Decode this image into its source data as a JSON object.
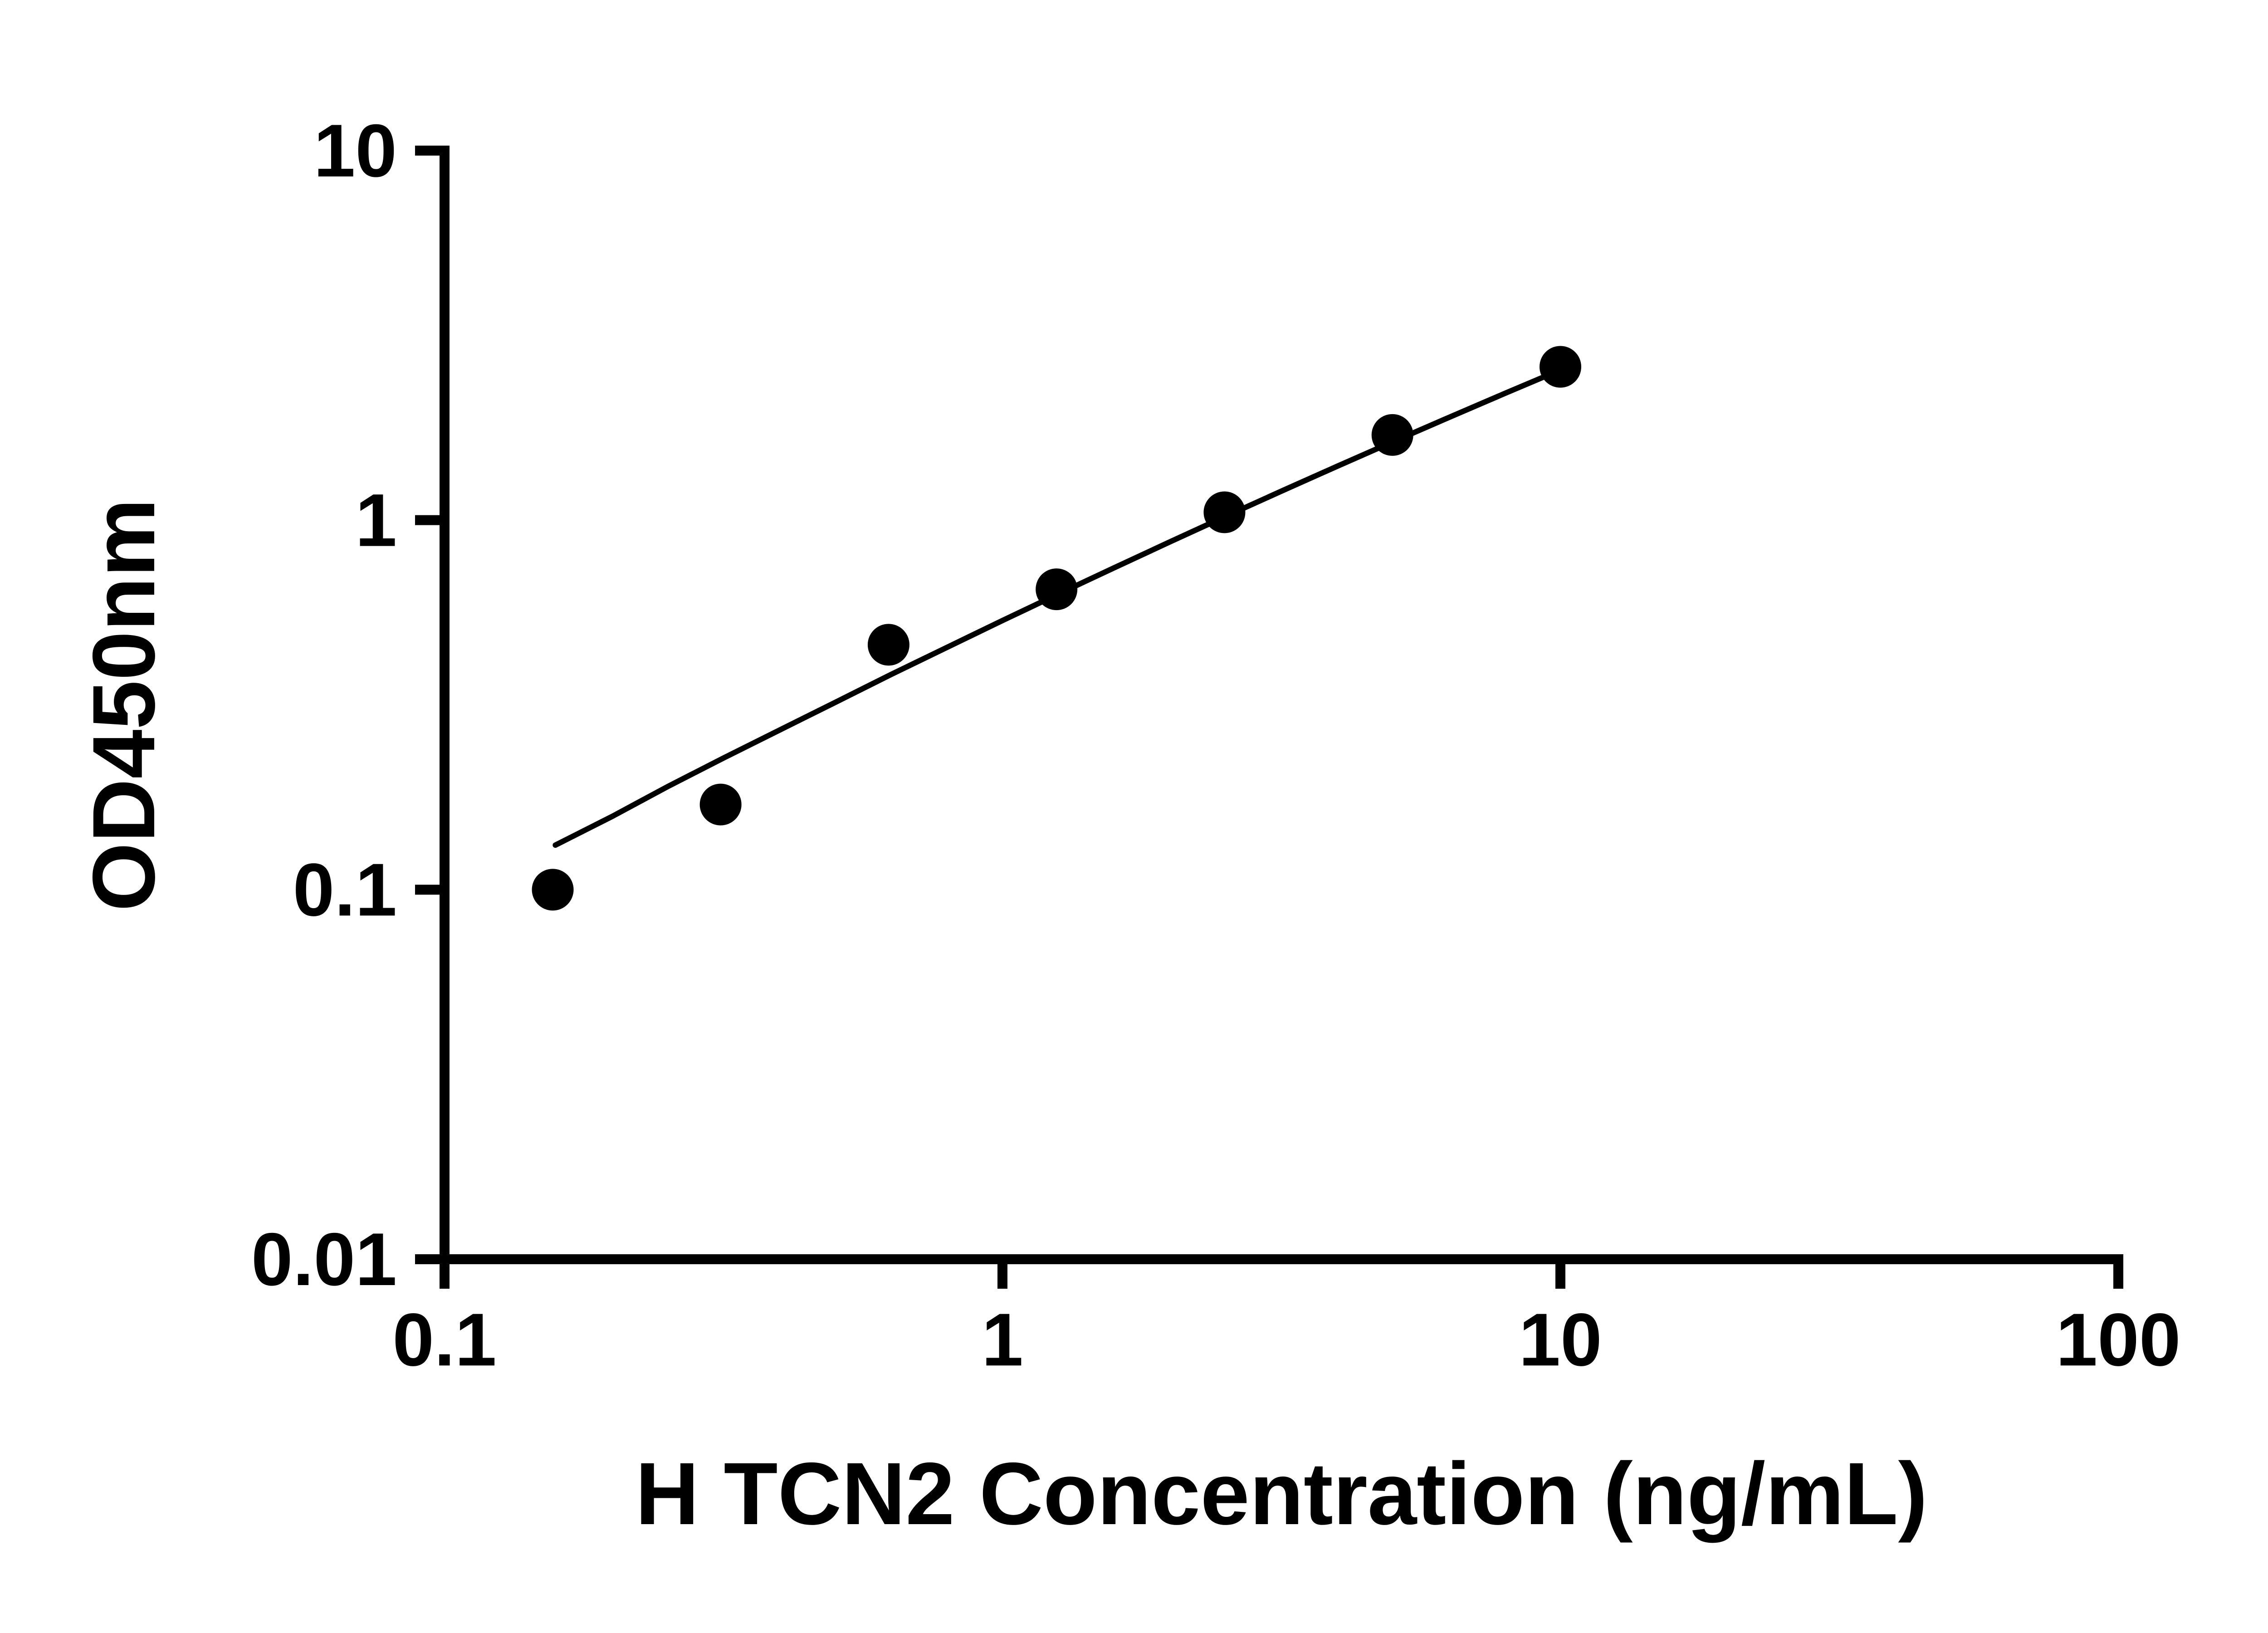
{
  "chart_data": {
    "type": "scatter",
    "title": "",
    "xlabel": "H TCN2 Concentration (ng/mL)",
    "ylabel": "OD450nm",
    "x_scale": "log",
    "y_scale": "log",
    "xlim": [
      0.1,
      100
    ],
    "ylim": [
      0.01,
      10
    ],
    "x_ticks": [
      0.1,
      1,
      10,
      100
    ],
    "x_tick_labels": [
      "0.1",
      "1",
      "10",
      "100"
    ],
    "y_ticks": [
      0.01,
      0.1,
      1,
      10
    ],
    "y_tick_labels": [
      "0.01",
      "0.1",
      "1",
      "10"
    ],
    "grid": false,
    "legend": "none",
    "colors": {
      "background": "#ffffff",
      "axis": "#000000",
      "point": "#000000",
      "line": "#000000"
    },
    "series": [
      {
        "name": "standard-points",
        "type": "scatter",
        "marker": "circle",
        "color": "#000000",
        "x": [
          0.1563,
          0.3125,
          0.625,
          1.25,
          2.5,
          5,
          10
        ],
        "y": [
          0.1,
          0.17,
          0.46,
          0.65,
          1.05,
          1.7,
          2.6
        ]
      },
      {
        "name": "fit-curve",
        "type": "line",
        "color": "#000000",
        "x": [
          0.158,
          0.2,
          0.251,
          0.316,
          0.398,
          0.501,
          0.631,
          0.794,
          1.0,
          1.259,
          1.585,
          1.995,
          2.512,
          3.162,
          3.981,
          5.012,
          6.31,
          7.943,
          10.0
        ],
        "y": [
          0.132,
          0.158,
          0.19,
          0.227,
          0.27,
          0.321,
          0.382,
          0.452,
          0.535,
          0.631,
          0.743,
          0.873,
          1.024,
          1.198,
          1.399,
          1.63,
          1.896,
          2.201,
          2.55
        ]
      }
    ]
  }
}
